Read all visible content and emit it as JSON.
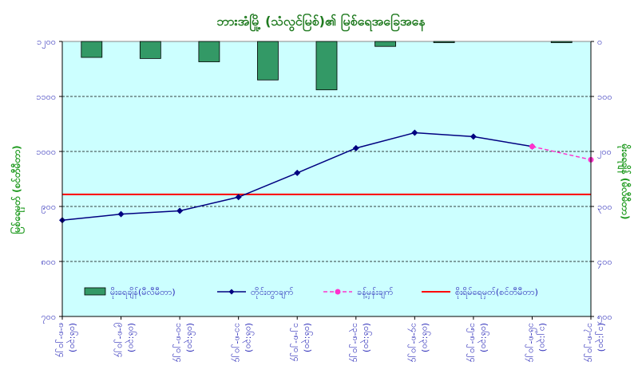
{
  "chart_data": {
    "type": "bar+line",
    "title": "ဘားအံမြို့ (သံလွင်မြစ်)၏ မြစ်ရေအခြေအနေ",
    "ylabel_left": "မြစ်ရေမှတ် (စင်တီမီတာ)",
    "ylabel_right": "မိုးရေချိန် (မီလီမီတာ)",
    "y_left": {
      "min": 700,
      "max": 1200,
      "step": 100,
      "tick_labels": [
        "၇၀၀",
        "၈၀၀",
        "၉၀၀",
        "၁၀၀၀",
        "၁၁၀၀",
        "၁၂၀၀"
      ]
    },
    "y_right": {
      "min": 0,
      "max": 500,
      "step": 100,
      "reversed": true,
      "tick_labels": [
        "၀",
        "၁၀၀",
        "၂၀၀",
        "၃၀၀",
        "၄၀၀",
        "၅၀၀"
      ]
    },
    "categories": [
      [
        "၈-၈-၂၀၂၄",
        "(၀၆:၃၀)"
      ],
      [
        "၉-၈-၂၀၂၄",
        "(၀၆:၃၀)"
      ],
      [
        "၁၀-၈-၂၀၂၄",
        "(၀၆:၃၀)"
      ],
      [
        "၁၁-၈-၂၀၂၄",
        "(၀၆:၃၀)"
      ],
      [
        "၁၂-၈-၂၀၂၄",
        "(၀၆:၃၀)"
      ],
      [
        "၁၃-၈-၂၀၂၄",
        "(၀၆:၃၀)"
      ],
      [
        "၁၄-၈-၂၀၂၄",
        "(၀၆:၃၀)"
      ],
      [
        "၁၅-၈-၂၀၂၄",
        "(၀၆:၃၀)"
      ],
      [
        "၁၆-၈-၂၀၂၄",
        "(၁၂:၃၀)"
      ],
      [
        "၁၇-၈-၂၀၂၄",
        "(၁၂:၃၀)"
      ]
    ],
    "series": [
      {
        "name": "မိုးရေချိန်(မီလီမီတာ)",
        "type": "bar",
        "axis": "right",
        "color": "#339966",
        "values": [
          29,
          31,
          37,
          70,
          88,
          9,
          2,
          null,
          1,
          null
        ]
      },
      {
        "name": "တိုင်းတွာချက်",
        "type": "line",
        "axis": "left",
        "color": "#000080",
        "values": [
          875,
          886,
          892,
          917,
          961,
          1006,
          1034,
          1027,
          1009,
          null
        ]
      },
      {
        "name": "ခန့်မှန်းချက်",
        "type": "line-dashed",
        "axis": "left",
        "color": "#ff33cc",
        "values": [
          null,
          null,
          null,
          null,
          null,
          null,
          null,
          null,
          1009,
          985
        ]
      },
      {
        "name": "စိုးရိမ်ရေမှတ်(စင်တီမီတာ)",
        "type": "hline",
        "axis": "left",
        "color": "#ff0000",
        "value": 922
      }
    ],
    "legend_position": "bottom-inside",
    "grid": "horizontal-dashed",
    "colors": {
      "plot_background": "#ccffff",
      "title": "#1f7a1f",
      "axis_text": "#2a2ab8",
      "axis_title": "#1f9a1f"
    }
  }
}
